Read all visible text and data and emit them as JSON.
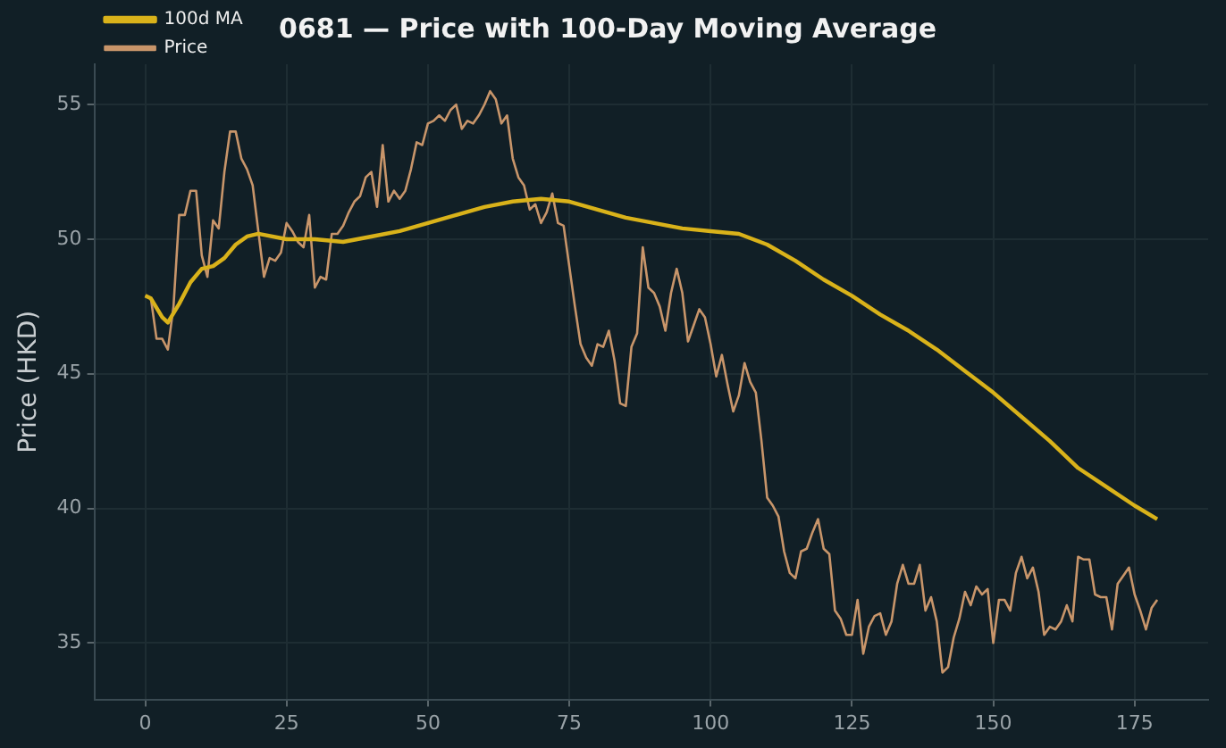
{
  "chart_data": {
    "type": "line",
    "title": "0681 — Price with 100-Day Moving Average",
    "ylabel": "Price (HKD)",
    "xlim": [
      -9,
      188
    ],
    "xticks": [
      0,
      25,
      50,
      75,
      100,
      125,
      150,
      175
    ],
    "ylim": [
      32.9,
      56.5
    ],
    "yticks": [
      35,
      40,
      45,
      50,
      55
    ],
    "grid": true,
    "legend": "top left",
    "marker": "none",
    "series": [
      {
        "name": "Price",
        "color": "#c8956a",
        "x": [
          0,
          1,
          2,
          3,
          4,
          5,
          6,
          7,
          8,
          9,
          10,
          11,
          12,
          13,
          14,
          15,
          16,
          17,
          18,
          19,
          20,
          21,
          22,
          23,
          24,
          25,
          26,
          27,
          28,
          29,
          30,
          31,
          32,
          33,
          34,
          35,
          36,
          37,
          38,
          39,
          40,
          41,
          42,
          43,
          44,
          45,
          46,
          47,
          48,
          49,
          50,
          51,
          52,
          53,
          54,
          55,
          56,
          57,
          58,
          59,
          60,
          61,
          62,
          63,
          64,
          65,
          66,
          67,
          68,
          69,
          70,
          71,
          72,
          73,
          74,
          75,
          76,
          77,
          78,
          79,
          80,
          81,
          82,
          83,
          84,
          85,
          86,
          87,
          88,
          89,
          90,
          91,
          92,
          93,
          94,
          95,
          96,
          97,
          98,
          99,
          100,
          101,
          102,
          103,
          104,
          105,
          106,
          107,
          108,
          109,
          110,
          111,
          112,
          113,
          114,
          115,
          116,
          117,
          118,
          119,
          120,
          121,
          122,
          123,
          124,
          125,
          126,
          127,
          128,
          129,
          130,
          131,
          132,
          133,
          134,
          135,
          136,
          137,
          138,
          139,
          140,
          141,
          142,
          143,
          144,
          145,
          146,
          147,
          148,
          149,
          150,
          151,
          152,
          153,
          154,
          155,
          156,
          157,
          158,
          159,
          160,
          161,
          162,
          163,
          164,
          165,
          166,
          167,
          168,
          169,
          170,
          171,
          172,
          173,
          174,
          175,
          176,
          177,
          178,
          179
        ],
        "values": [
          47.9,
          47.8,
          46.3,
          46.3,
          45.9,
          47.5,
          50.9,
          50.9,
          51.8,
          51.8,
          49.4,
          48.6,
          50.7,
          50.4,
          52.5,
          54.0,
          54.0,
          53.0,
          52.6,
          52.0,
          50.3,
          48.6,
          49.3,
          49.2,
          49.5,
          50.6,
          50.3,
          49.9,
          49.7,
          50.9,
          48.2,
          48.6,
          48.5,
          50.2,
          50.2,
          50.5,
          51.0,
          51.4,
          51.6,
          52.3,
          52.5,
          51.2,
          53.5,
          51.4,
          51.8,
          51.5,
          51.8,
          52.6,
          53.6,
          53.5,
          54.3,
          54.4,
          54.6,
          54.4,
          54.8,
          55.0,
          54.1,
          54.4,
          54.3,
          54.6,
          55.0,
          55.5,
          55.2,
          54.3,
          54.6,
          53.0,
          52.3,
          52.0,
          51.1,
          51.3,
          50.6,
          51.0,
          51.7,
          50.6,
          50.5,
          49.0,
          47.5,
          46.1,
          45.6,
          45.3,
          46.1,
          46.0,
          46.6,
          45.5,
          43.9,
          43.8,
          46.0,
          46.5,
          49.7,
          48.2,
          48.0,
          47.5,
          46.6,
          48.0,
          48.9,
          48.0,
          46.2,
          46.8,
          47.4,
          47.1,
          46.1,
          44.9,
          45.7,
          44.6,
          43.6,
          44.2,
          45.4,
          44.7,
          44.3,
          42.5,
          40.4,
          40.1,
          39.7,
          38.4,
          37.6,
          37.4,
          38.4,
          38.5,
          39.1,
          39.6,
          38.5,
          38.3,
          36.2,
          35.9,
          35.3,
          35.3,
          36.6,
          34.6,
          35.6,
          36.0,
          36.1,
          35.3,
          35.8,
          37.2,
          37.9,
          37.2,
          37.2,
          37.9,
          36.2,
          36.7,
          35.8,
          33.9,
          34.1,
          35.2,
          35.9,
          36.9,
          36.4,
          37.1,
          36.8,
          37.0,
          35.0,
          36.6,
          36.6,
          36.2,
          37.6,
          38.2,
          37.4,
          37.8,
          36.9,
          35.3,
          35.6,
          35.5,
          35.8,
          36.4,
          35.8,
          38.2,
          38.1,
          38.1,
          36.8,
          36.7,
          36.7,
          35.5,
          37.2,
          37.5,
          37.8,
          36.8,
          36.2,
          35.5,
          36.3,
          36.6
        ]
      },
      {
        "name": "100d MA",
        "color": "#d9b21a",
        "x": [
          0,
          1,
          3,
          4,
          6,
          8,
          10,
          12,
          14,
          16,
          18,
          20,
          25,
          30,
          35,
          40,
          45,
          50,
          55,
          60,
          65,
          70,
          75,
          80,
          85,
          90,
          95,
          100,
          105,
          110,
          115,
          120,
          125,
          130,
          135,
          140,
          145,
          150,
          155,
          160,
          165,
          170,
          175,
          179
        ],
        "values": [
          47.9,
          47.8,
          47.1,
          46.9,
          47.6,
          48.4,
          48.9,
          49.0,
          49.3,
          49.8,
          50.1,
          50.2,
          50.0,
          50.0,
          49.9,
          50.1,
          50.3,
          50.6,
          50.9,
          51.2,
          51.4,
          51.5,
          51.4,
          51.1,
          50.8,
          50.6,
          50.4,
          50.3,
          50.2,
          49.8,
          49.2,
          48.5,
          47.9,
          47.2,
          46.6,
          45.9,
          45.1,
          44.3,
          43.4,
          42.5,
          41.5,
          40.8,
          40.1,
          39.6
        ]
      }
    ]
  }
}
